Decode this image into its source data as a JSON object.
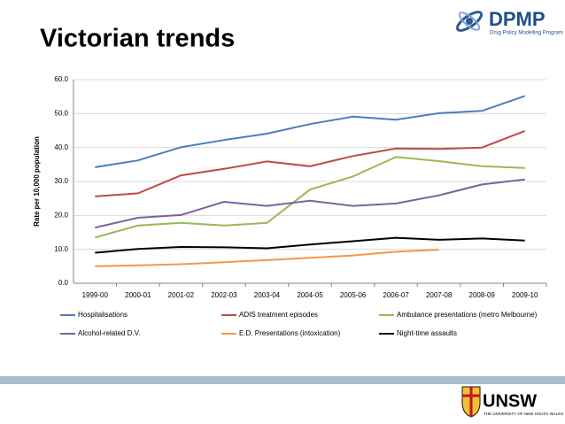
{
  "chart_data": {
    "type": "line",
    "title": "Victorian trends",
    "y_label": "Rate per 10,000 population",
    "categories": [
      "1999-00",
      "2000-01",
      "2001-02",
      "2002-03",
      "2003-04",
      "2004-05",
      "2005-06",
      "2006-07",
      "2007-08",
      "2008-09",
      "2009-10"
    ],
    "series": [
      {
        "name": "Hospitalisations",
        "color": "#4a7ebb",
        "values": [
          34.2,
          36.2,
          40.1,
          42.2,
          44.1,
          46.9,
          49.1,
          48.2,
          50.1,
          50.8,
          55.2
        ]
      },
      {
        "name": "ADIS treatment episodes",
        "color": "#be4b48",
        "values": [
          25.6,
          26.5,
          31.8,
          33.7,
          35.9,
          34.5,
          37.5,
          39.7,
          39.6,
          40.0,
          44.9
        ]
      },
      {
        "name": "Ambulance presentations (metro Melbourne)",
        "color": "#98b954",
        "values": [
          13.5,
          17.0,
          17.8,
          17.0,
          17.8,
          27.6,
          31.5,
          37.2,
          36.0,
          34.5,
          34.0
        ]
      },
      {
        "name": "Alcohol-related D.V.",
        "color": "#7d60a0",
        "values": [
          16.4,
          19.3,
          20.1,
          24.0,
          22.8,
          24.3,
          22.8,
          23.5,
          25.9,
          29.1,
          30.6
        ]
      },
      {
        "name": "E.D. Presentations (intoxication)",
        "color": "#f79646",
        "values": [
          5.0,
          5.3,
          5.6,
          6.2,
          6.8,
          7.5,
          8.2,
          9.3,
          9.9,
          null,
          null
        ]
      },
      {
        "name": "Night-time assaults",
        "color": "#000000",
        "values": [
          9.0,
          10.1,
          10.7,
          10.6,
          10.3,
          11.4,
          12.4,
          13.4,
          12.8,
          13.2,
          12.6
        ]
      }
    ],
    "ylim": [
      0,
      60
    ],
    "yticks": [
      {
        "value": 0,
        "label": "0.0"
      },
      {
        "value": 10,
        "label": "10.0"
      },
      {
        "value": 20,
        "label": "20.0"
      },
      {
        "value": 30,
        "label": "30.0"
      },
      {
        "value": 40,
        "label": "40.0"
      },
      {
        "value": 50,
        "label": "50.0"
      },
      {
        "value": 60,
        "label": "60.0"
      }
    ],
    "grid": true,
    "legend": "bottom"
  },
  "header_logo": {
    "name": "DPMP",
    "subtitle": "Drug Policy Modelling Program"
  },
  "footer_logo": {
    "name": "UNSW",
    "subtitle": "THE UNIVERSITY OF NEW SOUTH WALES"
  }
}
